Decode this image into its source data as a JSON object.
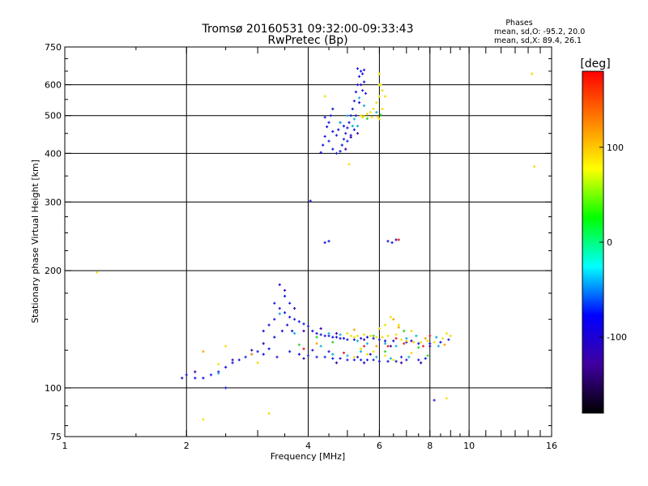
{
  "chart_data": {
    "type": "scatter",
    "title": "Tromsø 20160531 09:32:00-09:33:43",
    "subtitle": "RwPretec (Bp)",
    "xlabel": "Frequency [MHz]",
    "ylabel": "Stationary phase Virtual Height [km]",
    "x_scale": "log",
    "y_scale": "log",
    "xlim": [
      1,
      16
    ],
    "ylim": [
      75,
      750
    ],
    "x_ticks": [
      1,
      2,
      4,
      6,
      8,
      10,
      16
    ],
    "y_ticks": [
      75,
      100,
      200,
      300,
      400,
      500,
      600,
      750
    ],
    "x_gridlines": [
      2,
      4,
      6,
      8,
      10
    ],
    "y_gridlines": [
      100,
      200,
      300,
      400,
      500,
      600
    ],
    "grid": true,
    "stats": {
      "header": "Phases",
      "line_o": "mean, sd,O: -95.2, 20.0",
      "line_x": "mean, sd,X:  89.4, 26.1"
    },
    "colorbar": {
      "label": "deg",
      "range": [
        -180,
        180
      ],
      "ticks": [
        100,
        0,
        -100
      ],
      "colors": [
        "#ff0000",
        "#ff8000",
        "#ffff00",
        "#00ff00",
        "#00ffff",
        "#0000ff",
        "#4000a0",
        "#000000"
      ]
    },
    "series": [
      {
        "points": [
          [
            4.3,
            402
          ],
          [
            4.35,
            420
          ],
          [
            4.4,
            442
          ],
          [
            4.45,
            468
          ],
          [
            4.5,
            480
          ],
          [
            4.55,
            500
          ],
          [
            4.6,
            520
          ],
          [
            4.4,
            495
          ],
          [
            4.5,
            430
          ],
          [
            4.6,
            410
          ],
          [
            4.7,
            400
          ],
          [
            4.8,
            405
          ],
          [
            4.85,
            420
          ],
          [
            4.9,
            435
          ],
          [
            4.95,
            450
          ],
          [
            5.0,
            465
          ],
          [
            5.05,
            480
          ],
          [
            5.1,
            500
          ],
          [
            5.15,
            520
          ],
          [
            5.2,
            545
          ],
          [
            5.25,
            575
          ],
          [
            5.3,
            600
          ],
          [
            5.35,
            630
          ],
          [
            5.4,
            650
          ],
          [
            5.45,
            640
          ],
          [
            5.5,
            610
          ],
          [
            5.55,
            570
          ],
          [
            4.9,
            470
          ],
          [
            5.0,
            430
          ],
          [
            5.1,
            445
          ],
          [
            5.2,
            460
          ],
          [
            4.7,
            445
          ],
          [
            4.6,
            455
          ],
          [
            4.75,
            460
          ],
          [
            4.8,
            480
          ],
          [
            5.25,
            500
          ],
          [
            5.35,
            540
          ],
          [
            5.45,
            580
          ],
          [
            5.3,
            660
          ],
          [
            5.5,
            655
          ],
          [
            4.4,
            236
          ],
          [
            4.5,
            238
          ],
          [
            6.3,
            238
          ],
          [
            6.45,
            236
          ],
          [
            4.05,
            302
          ],
          [
            3.4,
            184
          ],
          [
            3.5,
            172
          ],
          [
            3.6,
            165
          ],
          [
            3.3,
            165
          ],
          [
            3.4,
            160
          ],
          [
            3.5,
            156
          ],
          [
            3.6,
            152
          ],
          [
            3.7,
            150
          ],
          [
            3.8,
            148
          ],
          [
            3.9,
            146
          ],
          [
            4.0,
            144
          ],
          [
            3.3,
            150
          ],
          [
            3.2,
            145
          ],
          [
            3.1,
            140
          ],
          [
            3.3,
            135
          ],
          [
            3.45,
            140
          ],
          [
            3.55,
            145
          ],
          [
            3.65,
            140
          ],
          [
            4.1,
            140
          ],
          [
            4.2,
            138
          ],
          [
            4.3,
            137
          ],
          [
            4.4,
            136
          ],
          [
            4.5,
            136
          ],
          [
            4.6,
            135
          ],
          [
            4.7,
            135
          ],
          [
            4.8,
            134
          ],
          [
            4.9,
            134
          ],
          [
            5.0,
            133
          ],
          [
            5.2,
            133
          ],
          [
            5.4,
            134
          ],
          [
            5.6,
            135
          ],
          [
            5.8,
            134
          ],
          [
            6.0,
            133
          ],
          [
            6.2,
            132
          ],
          [
            6.5,
            132
          ],
          [
            7.0,
            131
          ],
          [
            7.5,
            130
          ],
          [
            8.0,
            130
          ],
          [
            8.5,
            131
          ],
          [
            8.9,
            133
          ],
          [
            3.6,
            124
          ],
          [
            3.8,
            122
          ],
          [
            4.0,
            121
          ],
          [
            4.2,
            120
          ],
          [
            4.4,
            120
          ],
          [
            4.6,
            119
          ],
          [
            4.8,
            119
          ],
          [
            5.0,
            118
          ],
          [
            5.2,
            118
          ],
          [
            5.4,
            118
          ],
          [
            5.6,
            118
          ],
          [
            5.8,
            118
          ],
          [
            6.0,
            117
          ],
          [
            6.3,
            117
          ],
          [
            6.6,
            117
          ],
          [
            7.0,
            118
          ],
          [
            7.5,
            118
          ],
          [
            7.8,
            119
          ],
          [
            3.0,
            124
          ],
          [
            2.9,
            122
          ],
          [
            2.8,
            120
          ],
          [
            2.7,
            118
          ],
          [
            2.6,
            116
          ],
          [
            2.5,
            113
          ],
          [
            2.4,
            110
          ],
          [
            2.3,
            108
          ],
          [
            2.2,
            106
          ],
          [
            2.1,
            106
          ],
          [
            2.0,
            108
          ],
          [
            1.95,
            106
          ],
          [
            2.5,
            100
          ],
          [
            3.1,
            122
          ],
          [
            3.2,
            126
          ],
          [
            3.35,
            120
          ],
          [
            8.2,
            93
          ],
          [
            5.3,
            120
          ],
          [
            5.7,
            122
          ],
          [
            6.8,
            120
          ],
          [
            4.1,
            125
          ],
          [
            4.5,
            124
          ]
        ],
        "color": "#1818e0"
      },
      {
        "points": [
          [
            5.4,
            500
          ],
          [
            5.45,
            495
          ],
          [
            5.5,
            498
          ],
          [
            5.6,
            505
          ],
          [
            5.7,
            510
          ],
          [
            5.8,
            520
          ],
          [
            5.9,
            540
          ],
          [
            6.0,
            560
          ],
          [
            6.0,
            600
          ],
          [
            6.0,
            640
          ],
          [
            6.05,
            600
          ],
          [
            6.1,
            580
          ],
          [
            6.2,
            560
          ],
          [
            6.1,
            520
          ],
          [
            5.95,
            495
          ],
          [
            5.75,
            495
          ],
          [
            6.0,
            490
          ],
          [
            5.05,
            375
          ],
          [
            4.4,
            560
          ],
          [
            5.0,
            138
          ],
          [
            5.1,
            136
          ],
          [
            5.2,
            135
          ],
          [
            5.3,
            136
          ],
          [
            5.5,
            137
          ],
          [
            5.7,
            136
          ],
          [
            5.9,
            135
          ],
          [
            6.1,
            135
          ],
          [
            6.3,
            136
          ],
          [
            6.6,
            137
          ],
          [
            6.8,
            133
          ],
          [
            7.0,
            132
          ],
          [
            7.3,
            131
          ],
          [
            7.6,
            131
          ],
          [
            7.9,
            132
          ],
          [
            8.2,
            131
          ],
          [
            8.6,
            134
          ],
          [
            9.0,
            136
          ],
          [
            6.0,
            142
          ],
          [
            6.2,
            145
          ],
          [
            6.4,
            152
          ],
          [
            6.7,
            145
          ],
          [
            7.2,
            140
          ],
          [
            8.8,
            138
          ],
          [
            5.2,
            120
          ],
          [
            5.6,
            122
          ],
          [
            6.2,
            121
          ],
          [
            6.5,
            118
          ],
          [
            7.2,
            123
          ],
          [
            5.8,
            124
          ],
          [
            5.4,
            126
          ],
          [
            1.2,
            198
          ],
          [
            14.3,
            640
          ],
          [
            14.5,
            370
          ],
          [
            2.2,
            83
          ],
          [
            3.2,
            86
          ],
          [
            8.8,
            94
          ],
          [
            2.5,
            128
          ],
          [
            2.4,
            115
          ],
          [
            3.0,
            116
          ]
        ],
        "color": "#f0e000"
      },
      {
        "points": [
          [
            4.8,
            480
          ],
          [
            5.0,
            500
          ],
          [
            5.2,
            490
          ],
          [
            5.3,
            470
          ],
          [
            5.5,
            530
          ],
          [
            5.9,
            510
          ],
          [
            5.35,
            555
          ],
          [
            5.15,
            470
          ],
          [
            4.5,
            138
          ],
          [
            4.8,
            137
          ],
          [
            5.3,
            132
          ],
          [
            5.6,
            130
          ],
          [
            6.2,
            130
          ],
          [
            6.6,
            128
          ],
          [
            7.0,
            134
          ],
          [
            7.4,
            136
          ],
          [
            8.3,
            135
          ],
          [
            4.6,
            122
          ],
          [
            5.0,
            121
          ],
          [
            5.4,
            124
          ],
          [
            5.9,
            120
          ],
          [
            6.4,
            119
          ],
          [
            7.1,
            120
          ],
          [
            2.4,
            109
          ],
          [
            3.7,
            138
          ],
          [
            3.4,
            155
          ],
          [
            4.3,
            128
          ],
          [
            8.4,
            128
          ]
        ],
        "color": "#10b0d8"
      },
      {
        "points": [
          [
            5.1,
            440
          ],
          [
            5.3,
            450
          ],
          [
            4.95,
            410
          ],
          [
            5.4,
            600
          ],
          [
            3.5,
            178
          ],
          [
            3.7,
            160
          ],
          [
            3.9,
            140
          ],
          [
            4.3,
            142
          ],
          [
            4.7,
            138
          ],
          [
            5.5,
            133
          ],
          [
            6.4,
            128
          ],
          [
            7.2,
            132
          ],
          [
            8.0,
            128
          ],
          [
            3.9,
            119
          ],
          [
            4.7,
            116
          ],
          [
            5.5,
            116
          ],
          [
            6.8,
            116
          ],
          [
            7.6,
            116
          ],
          [
            2.9,
            125
          ],
          [
            2.6,
            118
          ],
          [
            2.1,
            110
          ],
          [
            3.1,
            130
          ],
          [
            6.6,
            240
          ]
        ],
        "color": "#3c00a8"
      },
      {
        "points": [
          [
            6.6,
            134
          ],
          [
            6.9,
            130
          ],
          [
            7.7,
            128
          ],
          [
            6.3,
            128
          ],
          [
            5.5,
            128
          ],
          [
            4.9,
            123
          ],
          [
            3.9,
            126
          ],
          [
            6.7,
            240
          ],
          [
            8.0,
            136
          ]
        ],
        "color": "#e82020"
      },
      {
        "points": [
          [
            5.8,
            136
          ],
          [
            6.9,
            140
          ],
          [
            7.5,
            127
          ],
          [
            4.6,
            131
          ],
          [
            5.6,
            491
          ],
          [
            6.05,
            502
          ],
          [
            4.2,
            135
          ],
          [
            6.2,
            124
          ],
          [
            7.9,
            121
          ],
          [
            3.8,
            129
          ]
        ],
        "color": "#30d030"
      },
      {
        "points": [
          [
            6.5,
            150
          ],
          [
            6.7,
            143
          ],
          [
            7.8,
            134
          ],
          [
            5.2,
            141
          ],
          [
            2.2,
            124
          ],
          [
            2.9,
            122
          ],
          [
            4.2,
            130
          ],
          [
            5.9,
            128
          ],
          [
            8.7,
            129
          ]
        ],
        "color": "#ffa000"
      }
    ]
  }
}
